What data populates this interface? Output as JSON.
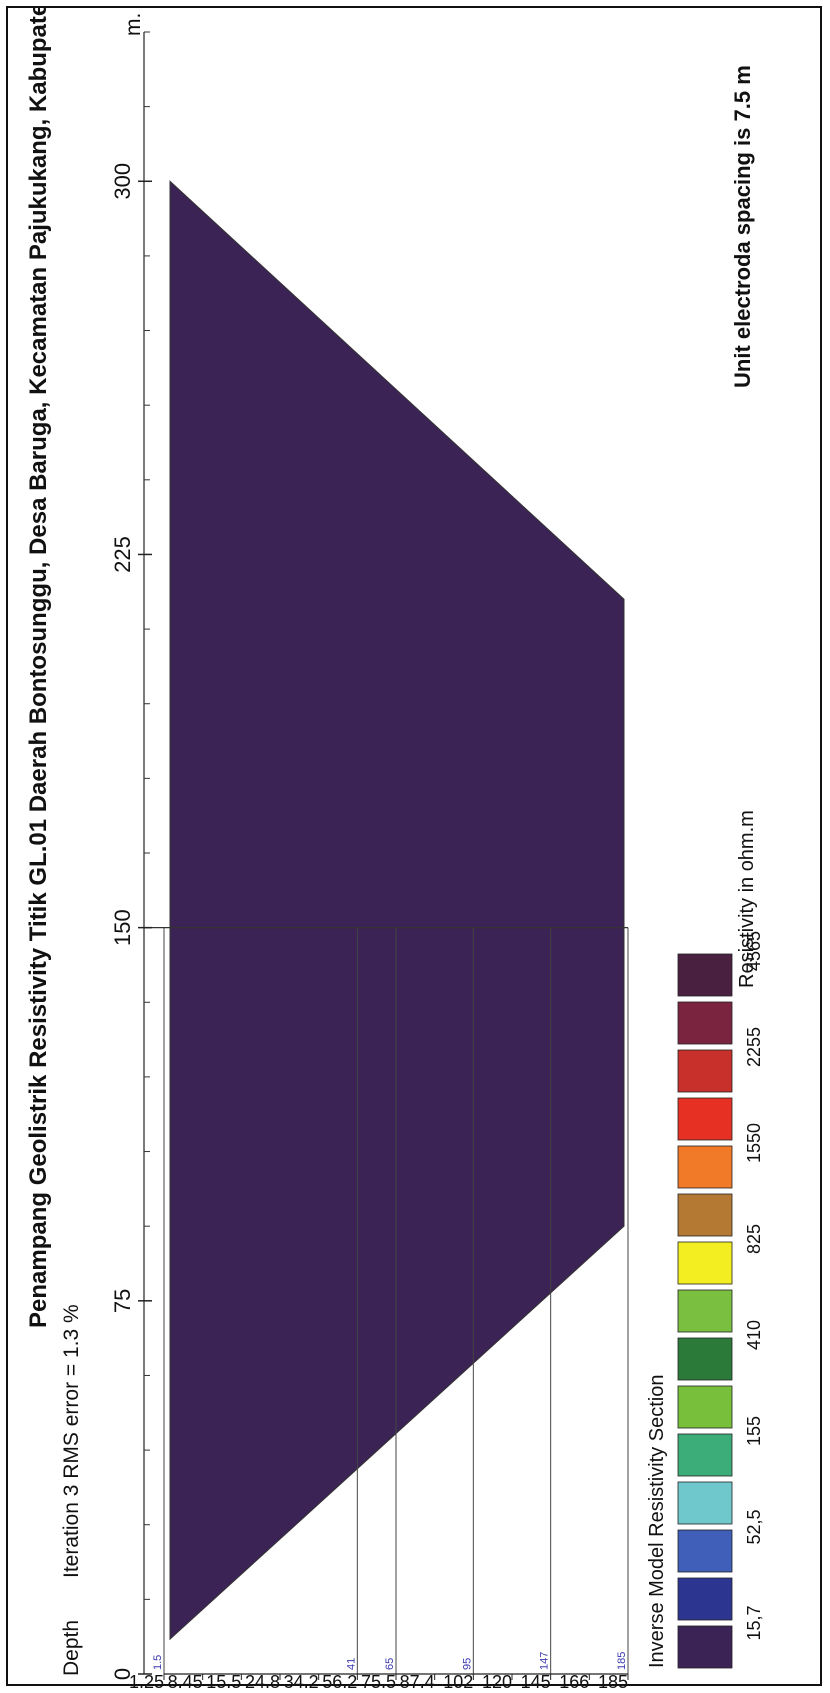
{
  "chart_data": {
    "type": "heatmap",
    "title": "Penampang Geolistrik Resistivity Titik GL.01 Daerah Bontosunggu, Desa Baruga, Kecamatan Pajukukang, Kabupaten Bantaeng",
    "subtitle": "Iteration 3 RMS error = 1.3 %",
    "note": "Unit electroda spacing is 7.5 m",
    "xlabel": "m.",
    "ylabel": "Depth",
    "x_ticks": [
      "0",
      "75",
      "150",
      "225",
      "300"
    ],
    "x_range": [
      0,
      300
    ],
    "depth_ticks": [
      "1.25",
      "8,45",
      "15,5",
      "24,8",
      "34,2",
      "56,2",
      "75,5",
      "87,4",
      "102",
      "120",
      "145",
      "166",
      "185"
    ],
    "marker_depths": [
      "1.5",
      "41",
      "65",
      "95",
      "147",
      "185"
    ],
    "legend_title": "Inverse Model Resistivity Section",
    "legend_unit": "Resistivity in ohm.m",
    "legend_labels": [
      "15,7",
      "52,5",
      "155",
      "410",
      "825",
      "1550",
      "2255",
      "4565"
    ],
    "colorscale": [
      "#3b2355",
      "#2c3590",
      "#3f5fb8",
      "#6ec8cc",
      "#3cac78",
      "#78bf3c",
      "#2b7a3a",
      "#7bbf40",
      "#f2ee22",
      "#b47a34",
      "#f07a28",
      "#e63024",
      "#c8302c",
      "#7a2440",
      "#4a2040"
    ],
    "section_shape": "trapezoid",
    "vertical_marker_x": 150
  }
}
